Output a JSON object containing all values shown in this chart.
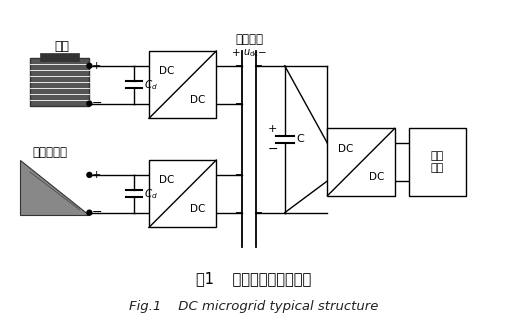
{
  "bg_color": "#ffffff",
  "title_cn": "图1    直流微电网典型结构",
  "title_en": "Fig.1    DC microgrid typical structure",
  "dc_label": "DC",
  "load_label": "直流\n负载",
  "bus_label": "直流母线",
  "plus_udc": "+",
  "udc_label": "$u_{\\mathrm{dc}}$",
  "minus_udc": "−",
  "energy_label": "储能",
  "dist_label": "分布式电源",
  "cd_label": "$C_d$",
  "c_label": "C",
  "lw": 1.0
}
